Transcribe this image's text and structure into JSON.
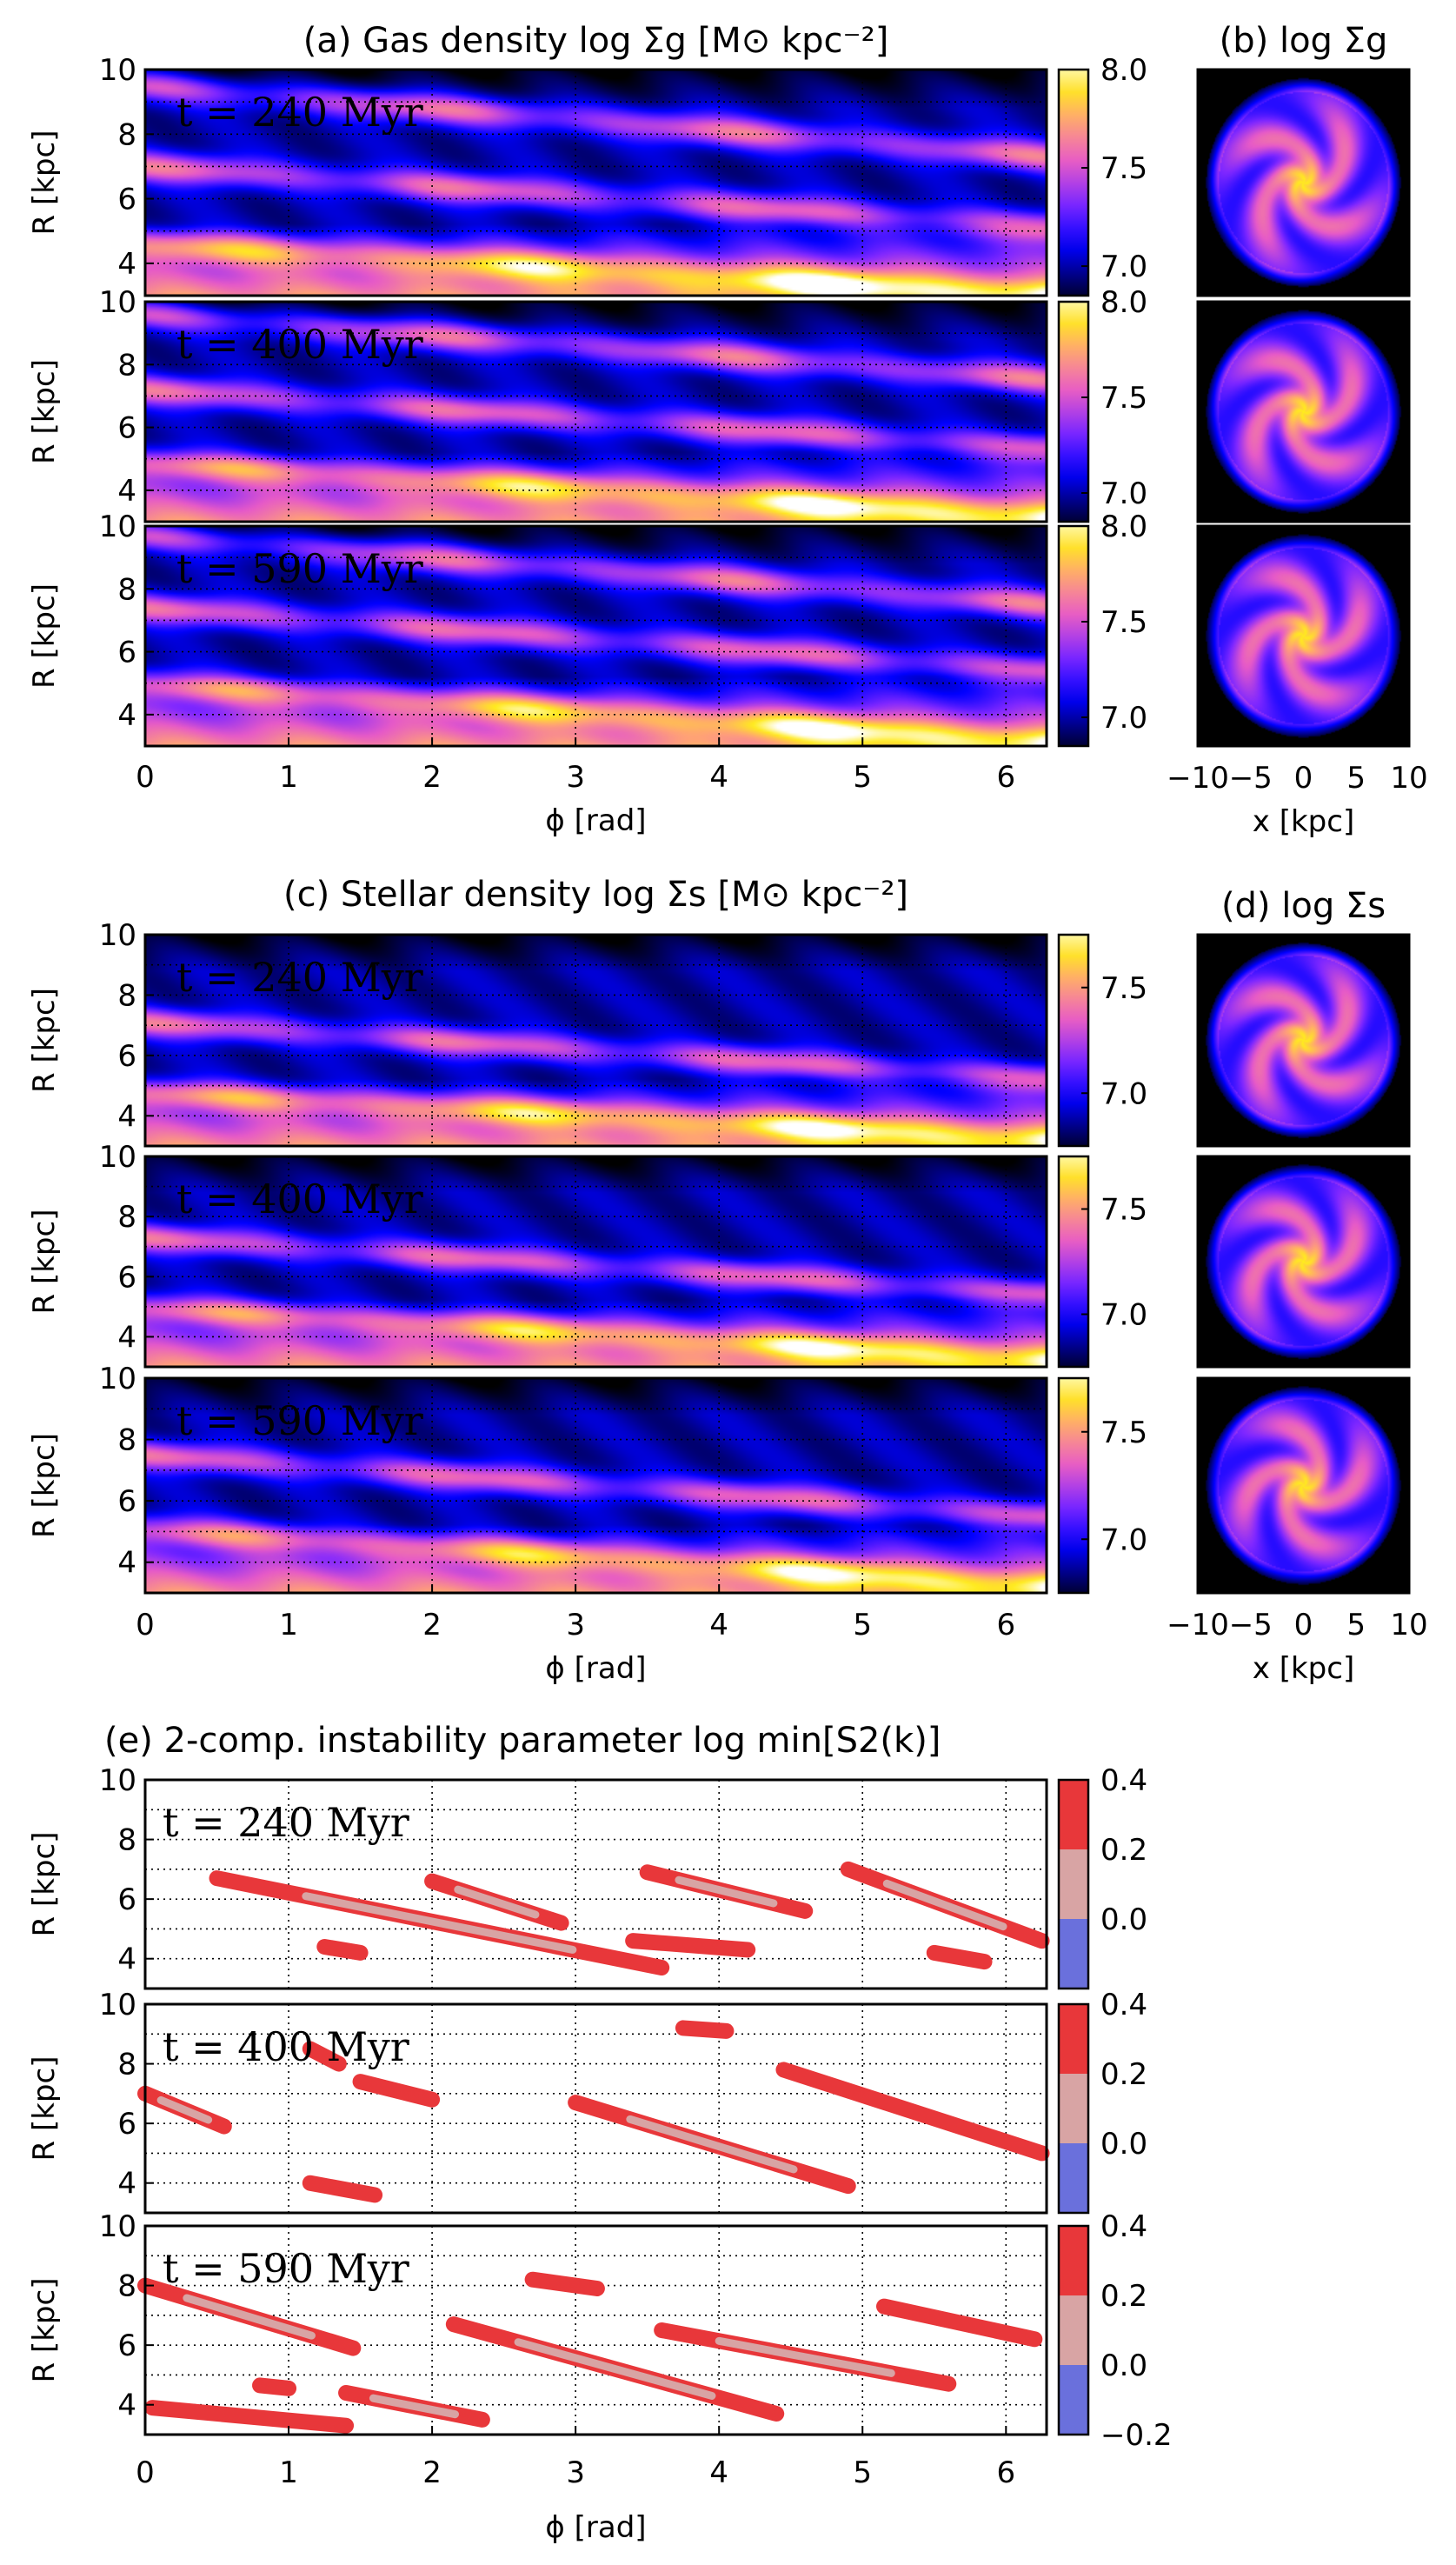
{
  "chart_data": [
    {
      "id": "a",
      "type": "heatmap",
      "title": "(a) Gas density log Σg [M⊙ kpc⁻²]",
      "xlabel": "ϕ [rad]",
      "ylabel": "R [kpc]",
      "xlim": [
        0,
        6.283
      ],
      "ylim": [
        3,
        10
      ],
      "xticks": [
        "0",
        "1",
        "2",
        "3",
        "4",
        "5",
        "6"
      ],
      "yticks": [
        "4",
        "6",
        "8",
        "10"
      ],
      "grid": true,
      "colormap": "gnuplot2",
      "colorbar": {
        "range": [
          6.85,
          8.0
        ],
        "ticks": [
          "7.0",
          "7.5",
          "8.0"
        ]
      },
      "panels": [
        {
          "time_label": "t = 240 Myr",
          "arms": [
            {
              "R0": 4.6,
              "slope": -0.25
            },
            {
              "R0": 7.0,
              "slope": -0.3
            },
            {
              "R0": 9.5,
              "slope": -0.35
            }
          ]
        },
        {
          "time_label": "t = 400 Myr",
          "arms": [
            {
              "R0": 4.9,
              "slope": -0.28
            },
            {
              "R0": 7.2,
              "slope": -0.3
            },
            {
              "R0": 9.6,
              "slope": -0.33
            }
          ]
        },
        {
          "time_label": "t = 590 Myr",
          "arms": [
            {
              "R0": 5.0,
              "slope": -0.3
            },
            {
              "R0": 7.4,
              "slope": -0.32
            },
            {
              "R0": 9.7,
              "slope": -0.35
            }
          ]
        }
      ]
    },
    {
      "id": "b",
      "type": "heatmap",
      "title": "(b) log Σg",
      "xlabel": "x [kpc]",
      "xlim": [
        -10,
        10
      ],
      "xticks": [
        "−10",
        "−5",
        "0",
        "5",
        "10"
      ],
      "panels": [
        {
          "twist": 0.0
        },
        {
          "twist": 0.5
        },
        {
          "twist": 1.0
        }
      ]
    },
    {
      "id": "c",
      "type": "heatmap",
      "title": "(c) Stellar density log Σs [M⊙ kpc⁻²]",
      "xlabel": "ϕ [rad]",
      "ylabel": "R [kpc]",
      "xlim": [
        0,
        6.283
      ],
      "ylim": [
        3,
        10
      ],
      "xticks": [
        "0",
        "1",
        "2",
        "3",
        "4",
        "5",
        "6"
      ],
      "yticks": [
        "4",
        "6",
        "8",
        "10"
      ],
      "grid": true,
      "colormap": "gnuplot2",
      "colorbar": {
        "range": [
          6.75,
          7.75
        ],
        "ticks": [
          "7.0",
          "7.5"
        ]
      },
      "panels": [
        {
          "time_label": "t = 240 Myr",
          "arms": [
            {
              "R0": 4.8,
              "slope": -0.25
            },
            {
              "R0": 7.1,
              "slope": -0.3
            }
          ]
        },
        {
          "time_label": "t = 400 Myr",
          "arms": [
            {
              "R0": 5.0,
              "slope": -0.28
            },
            {
              "R0": 7.3,
              "slope": -0.3
            }
          ]
        },
        {
          "time_label": "t = 590 Myr",
          "arms": [
            {
              "R0": 5.1,
              "slope": -0.3
            },
            {
              "R0": 7.5,
              "slope": -0.32
            }
          ]
        }
      ]
    },
    {
      "id": "d",
      "type": "heatmap",
      "title": "(d) log Σs",
      "xlabel": "x [kpc]",
      "xlim": [
        -10,
        10
      ],
      "xticks": [
        "−10",
        "−5",
        "0",
        "5",
        "10"
      ],
      "panels": [
        {
          "twist": 0.2
        },
        {
          "twist": 0.7
        },
        {
          "twist": 1.2
        }
      ]
    },
    {
      "id": "e",
      "type": "area",
      "title": "(e) 2-comp. instability parameter log min[S2(k)]",
      "xlabel": "ϕ [rad]",
      "ylabel": "R [kpc]",
      "xlim": [
        0,
        6.283
      ],
      "ylim": [
        3,
        10
      ],
      "xticks": [
        "0",
        "1",
        "2",
        "3",
        "4",
        "5",
        "6"
      ],
      "yticks": [
        "4",
        "6",
        "8",
        "10"
      ],
      "grid": true,
      "colorbar": {
        "range": [
          -0.2,
          0.4
        ],
        "ticks": [
          "0.4",
          "0.2",
          "0.0",
          "−0.2"
        ],
        "levels": [
          {
            "from": -0.2,
            "to": 0.0,
            "color": "#6a70dc"
          },
          {
            "from": 0.0,
            "to": 0.2,
            "color": "#d8a4a4"
          },
          {
            "from": 0.2,
            "to": 0.4,
            "color": "#e8373a"
          }
        ]
      },
      "panels": [
        {
          "time_label": "t = 240 Myr",
          "contours": [
            {
              "x1": 0.5,
              "y1": 6.7,
              "x2": 3.6,
              "y2": 3.7,
              "level": 0.2,
              "inner": true
            },
            {
              "x1": 2.0,
              "y1": 6.6,
              "x2": 2.9,
              "y2": 5.2,
              "level": 0.2,
              "inner": true
            },
            {
              "x1": 3.5,
              "y1": 6.9,
              "x2": 4.6,
              "y2": 5.6,
              "level": 0.2,
              "inner": true
            },
            {
              "x1": 4.9,
              "y1": 7.0,
              "x2": 6.25,
              "y2": 4.6,
              "level": 0.2,
              "inner": true
            },
            {
              "x1": 1.25,
              "y1": 4.4,
              "x2": 1.5,
              "y2": 4.2,
              "level": 0.2,
              "inner": false
            },
            {
              "x1": 3.4,
              "y1": 4.6,
              "x2": 4.2,
              "y2": 4.3,
              "level": 0.2,
              "inner": false
            },
            {
              "x1": 5.5,
              "y1": 4.2,
              "x2": 5.85,
              "y2": 3.9,
              "level": 0.2,
              "inner": false
            }
          ]
        },
        {
          "time_label": "t = 400 Myr",
          "contours": [
            {
              "x1": 0.0,
              "y1": 7.0,
              "x2": 0.55,
              "y2": 5.9,
              "level": 0.2,
              "inner": true
            },
            {
              "x1": 1.5,
              "y1": 7.4,
              "x2": 2.0,
              "y2": 6.8,
              "level": 0.2,
              "inner": false
            },
            {
              "x1": 3.0,
              "y1": 6.7,
              "x2": 4.9,
              "y2": 3.9,
              "level": 0.2,
              "inner": true
            },
            {
              "x1": 4.45,
              "y1": 7.8,
              "x2": 6.25,
              "y2": 5.0,
              "level": 0.2,
              "inner": false
            },
            {
              "x1": 1.15,
              "y1": 8.5,
              "x2": 1.35,
              "y2": 8.0,
              "level": 0.2,
              "inner": false
            },
            {
              "x1": 3.75,
              "y1": 9.2,
              "x2": 4.05,
              "y2": 9.1,
              "level": 0.2,
              "inner": false
            },
            {
              "x1": 1.15,
              "y1": 4.0,
              "x2": 1.6,
              "y2": 3.6,
              "level": 0.2,
              "inner": false
            }
          ]
        },
        {
          "time_label": "t = 590 Myr",
          "contours": [
            {
              "x1": 0.0,
              "y1": 8.0,
              "x2": 1.45,
              "y2": 5.9,
              "level": 0.2,
              "inner": true
            },
            {
              "x1": 2.15,
              "y1": 6.7,
              "x2": 4.4,
              "y2": 3.7,
              "level": 0.2,
              "inner": true
            },
            {
              "x1": 3.6,
              "y1": 6.5,
              "x2": 5.6,
              "y2": 4.7,
              "level": 0.2,
              "inner": true
            },
            {
              "x1": 5.15,
              "y1": 7.3,
              "x2": 6.2,
              "y2": 6.2,
              "level": 0.2,
              "inner": false
            },
            {
              "x1": 2.7,
              "y1": 8.2,
              "x2": 3.15,
              "y2": 7.9,
              "level": 0.2,
              "inner": false
            },
            {
              "x1": 0.05,
              "y1": 3.9,
              "x2": 1.4,
              "y2": 3.3,
              "level": 0.2,
              "inner": false
            },
            {
              "x1": 1.4,
              "y1": 4.4,
              "x2": 2.35,
              "y2": 3.5,
              "level": 0.2,
              "inner": true
            },
            {
              "x1": 0.8,
              "y1": 4.65,
              "x2": 1.0,
              "y2": 4.55,
              "level": 0.2,
              "inner": false
            }
          ]
        }
      ]
    }
  ]
}
